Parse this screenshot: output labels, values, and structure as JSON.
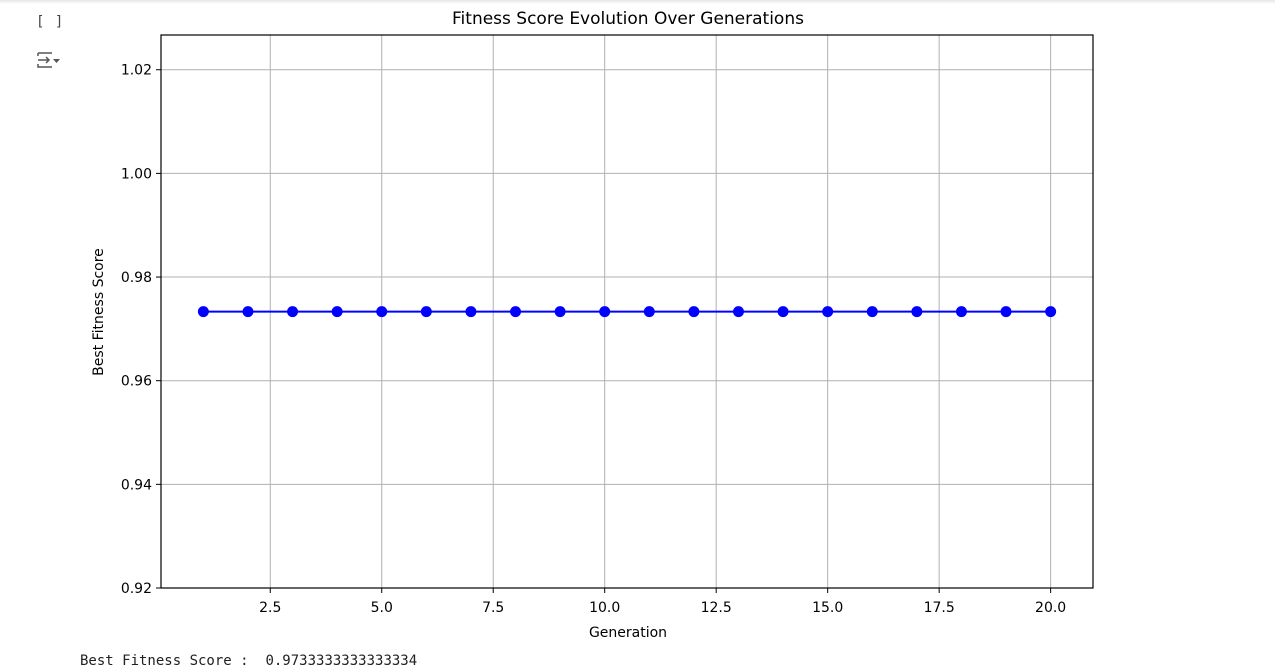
{
  "cell": {
    "run_indicator": "[ ]",
    "output_toggle_icon": "output-collapse-icon"
  },
  "output": {
    "stdout_label": "Best Fitness Score :",
    "stdout_value": "0.9733333333333334"
  },
  "chart_data": {
    "type": "line",
    "title": "Fitness Score Evolution Over Generations",
    "xlabel": "Generation",
    "ylabel": "Best Fitness Score",
    "x": [
      1,
      2,
      3,
      4,
      5,
      6,
      7,
      8,
      9,
      10,
      11,
      12,
      13,
      14,
      15,
      16,
      17,
      18,
      19,
      20
    ],
    "series": [
      {
        "values": [
          0.9733333333333334,
          0.9733333333333334,
          0.9733333333333334,
          0.9733333333333334,
          0.9733333333333334,
          0.9733333333333334,
          0.9733333333333334,
          0.9733333333333334,
          0.9733333333333334,
          0.9733333333333334,
          0.9733333333333334,
          0.9733333333333334,
          0.9733333333333334,
          0.9733333333333334,
          0.9733333333333334,
          0.9733333333333334,
          0.9733333333333334,
          0.9733333333333334,
          0.9733333333333334,
          0.9733333333333334
        ],
        "color": "#0000ff",
        "marker": "circle"
      }
    ],
    "xlim": [
      0.05,
      20.95
    ],
    "ylim": [
      0.92,
      1.0267
    ],
    "xticks": [
      2.5,
      5.0,
      7.5,
      10.0,
      12.5,
      15.0,
      17.5,
      20.0
    ],
    "xtick_labels": [
      "2.5",
      "5.0",
      "7.5",
      "10.0",
      "12.5",
      "15.0",
      "17.5",
      "20.0"
    ],
    "yticks": [
      0.92,
      0.94,
      0.96,
      0.98,
      1.0,
      1.02
    ],
    "ytick_labels": [
      "0.92",
      "0.94",
      "0.96",
      "0.98",
      "1.00",
      "1.02"
    ],
    "grid": true
  }
}
